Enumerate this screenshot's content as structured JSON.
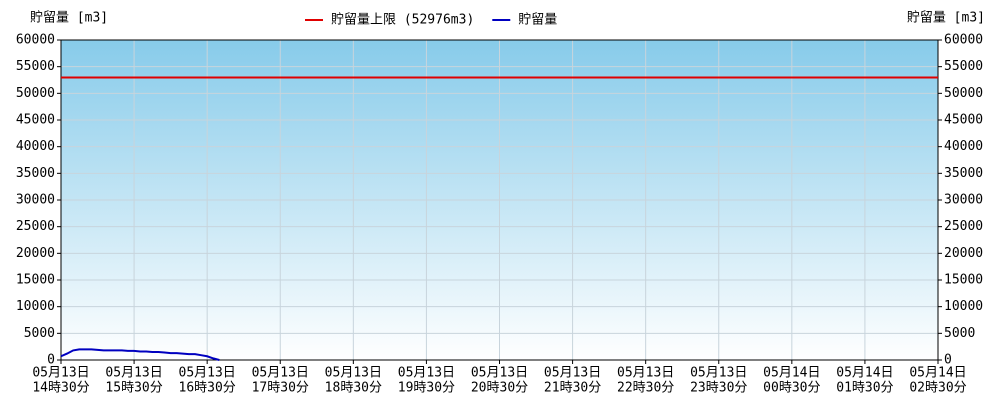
{
  "chart_data": {
    "type": "line",
    "y_label": "貯留量 [m3]",
    "y2_label": "貯留量 [m3]",
    "ylim": [
      0,
      60000
    ],
    "yticks": [
      0,
      5000,
      10000,
      15000,
      20000,
      25000,
      30000,
      35000,
      40000,
      45000,
      50000,
      55000,
      60000
    ],
    "y2lim": [
      0,
      60000
    ],
    "y2ticks": [
      0,
      5000,
      10000,
      15000,
      20000,
      25000,
      30000,
      35000,
      40000,
      45000,
      50000,
      55000,
      60000
    ],
    "xlim": [
      "05-13 14:30",
      "05-14 02:30"
    ],
    "xticks": [
      {
        "value": "05-13 14:30",
        "label": [
          "05月13日",
          "14時30分"
        ]
      },
      {
        "value": "05-13 15:30",
        "label": [
          "05月13日",
          "15時30分"
        ]
      },
      {
        "value": "05-13 16:30",
        "label": [
          "05月13日",
          "16時30分"
        ]
      },
      {
        "value": "05-13 17:30",
        "label": [
          "05月13日",
          "17時30分"
        ]
      },
      {
        "value": "05-13 18:30",
        "label": [
          "05月13日",
          "18時30分"
        ]
      },
      {
        "value": "05-13 19:30",
        "label": [
          "05月13日",
          "19時30分"
        ]
      },
      {
        "value": "05-13 20:30",
        "label": [
          "05月13日",
          "20時30分"
        ]
      },
      {
        "value": "05-13 21:30",
        "label": [
          "05月13日",
          "21時30分"
        ]
      },
      {
        "value": "05-13 22:30",
        "label": [
          "05月13日",
          "22時30分"
        ]
      },
      {
        "value": "05-13 23:30",
        "label": [
          "05月13日",
          "23時30分"
        ]
      },
      {
        "value": "05-14 00:30",
        "label": [
          "05月14日",
          "00時30分"
        ]
      },
      {
        "value": "05-14 01:30",
        "label": [
          "05月14日",
          "01時30分"
        ]
      },
      {
        "value": "05-14 02:30",
        "label": [
          "05月14日",
          "02時30分"
        ]
      }
    ],
    "grid": true,
    "limit": {
      "name": "貯留量上限 (52976m3)",
      "value": 52976,
      "color": "#e00000"
    },
    "x": [
      "05-13 14:30",
      "05-13 14:35",
      "05-13 14:40",
      "05-13 14:45",
      "05-13 14:50",
      "05-13 14:55",
      "05-13 15:00",
      "05-13 15:05",
      "05-13 15:10",
      "05-13 15:15",
      "05-13 15:20",
      "05-13 15:25",
      "05-13 15:30",
      "05-13 15:35",
      "05-13 15:40",
      "05-13 15:45",
      "05-13 15:50",
      "05-13 15:55",
      "05-13 16:00",
      "05-13 16:05",
      "05-13 16:10",
      "05-13 16:15",
      "05-13 16:20",
      "05-13 16:25",
      "05-13 16:30",
      "05-13 16:35",
      "05-13 16:40"
    ],
    "series": [
      {
        "name": "貯留量",
        "color": "#0000c0",
        "values": [
          700,
          1200,
          1800,
          2000,
          2000,
          2000,
          1900,
          1800,
          1800,
          1800,
          1800,
          1700,
          1700,
          1600,
          1600,
          1500,
          1500,
          1400,
          1300,
          1300,
          1200,
          1100,
          1100,
          900,
          700,
          300,
          0
        ]
      }
    ]
  }
}
